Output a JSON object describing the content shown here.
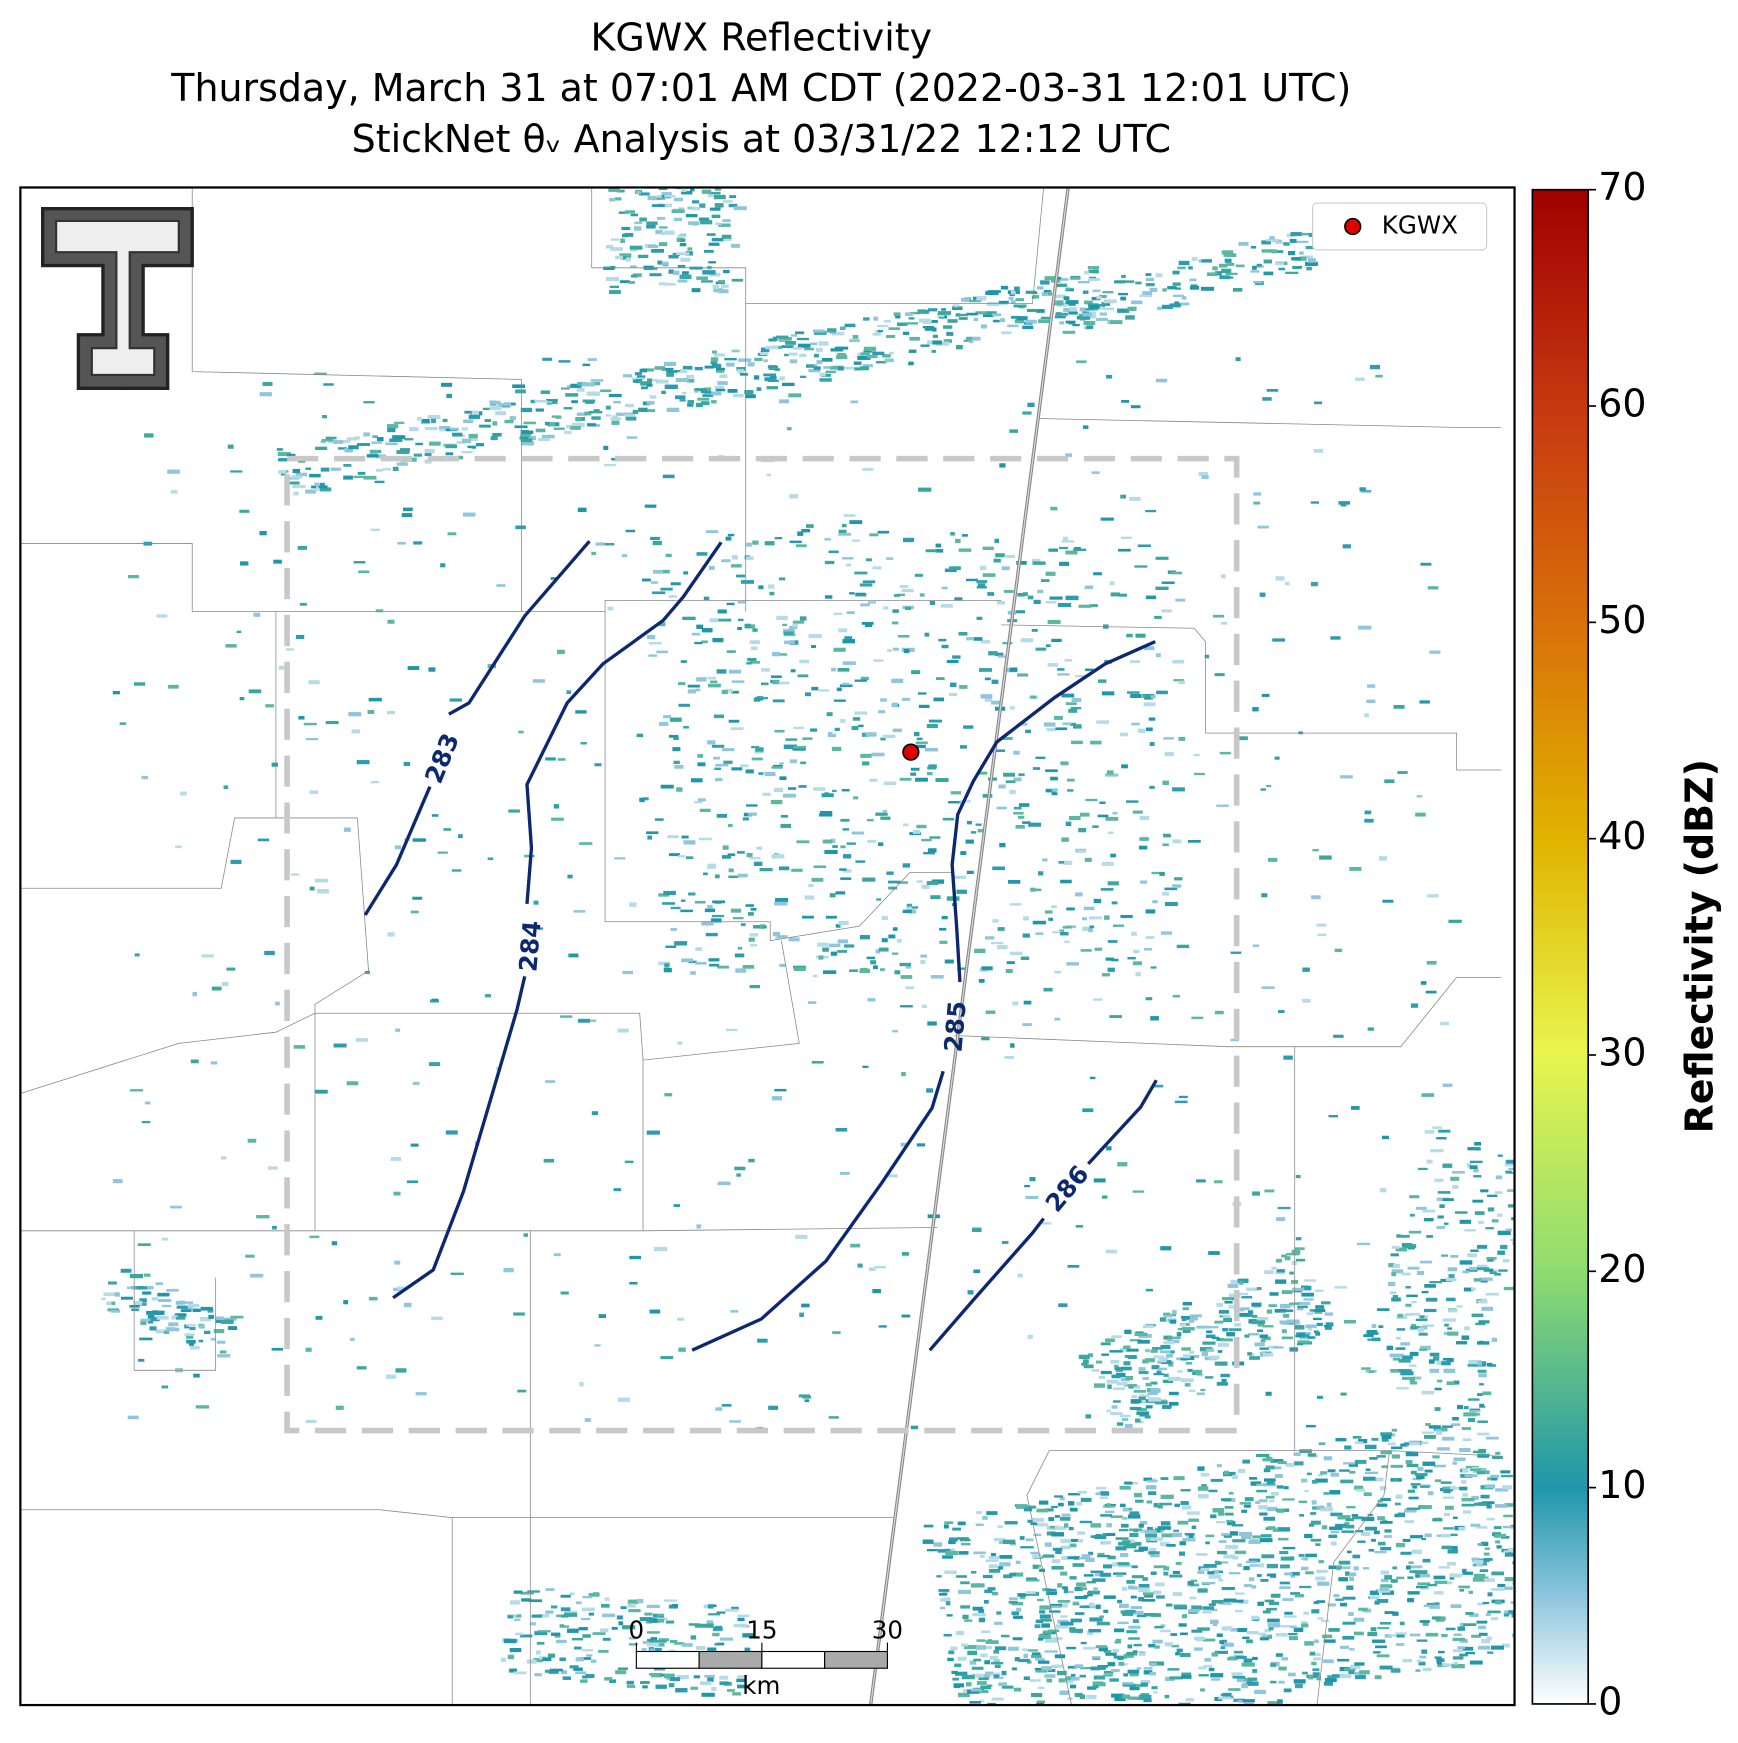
{
  "title_lines": [
    "KGWX Reflectivity",
    "Thursday, March 31 at 07:01 AM CDT (2022-03-31 12:01 UTC)",
    "StickNet θᵥ Analysis at 03/31/22 12:12 UTC"
  ],
  "legend": {
    "label": "KGWX"
  },
  "colorbar": {
    "label": "Reflectivity (dBZ)",
    "ylim": [
      0,
      70
    ],
    "yticks": [
      0,
      10,
      20,
      30,
      40,
      50,
      60,
      70
    ]
  },
  "contours": [
    283,
    284,
    285,
    286
  ],
  "scale_bar": {
    "ticks": [
      0,
      15,
      30
    ],
    "unit": "km"
  }
}
